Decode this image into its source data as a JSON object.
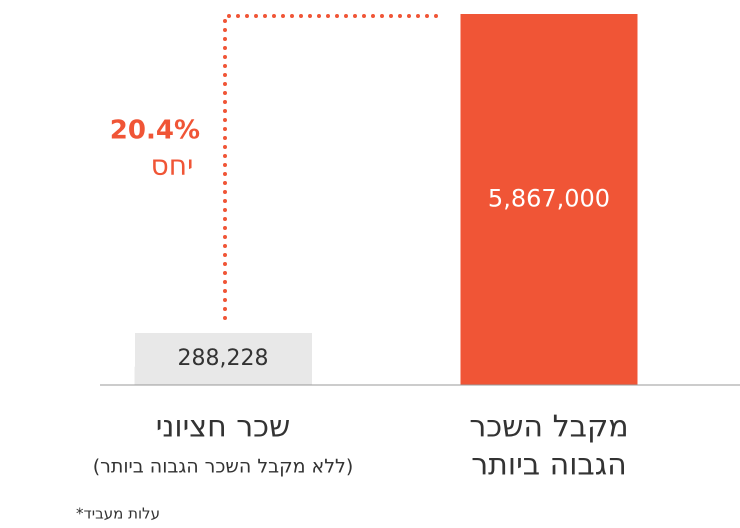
{
  "chart_data": {
    "type": "bar",
    "categories": [
      [
        "שכר חציוני"
      ],
      [
        "מקבל השכר",
        "הגבוה ביותר"
      ]
    ],
    "values": [
      288228,
      5867000
    ],
    "value_labels": [
      "288,228",
      "5,867,000"
    ],
    "colors": [
      "#e8e8e8",
      "#f05536"
    ],
    "annotations": {
      "ratio_value": "20.4%",
      "ratio_label": "יחס",
      "median_note": "(ללא מקבל השכר הגבוה ביותר)",
      "footnote": "*עלות מעביד"
    }
  }
}
